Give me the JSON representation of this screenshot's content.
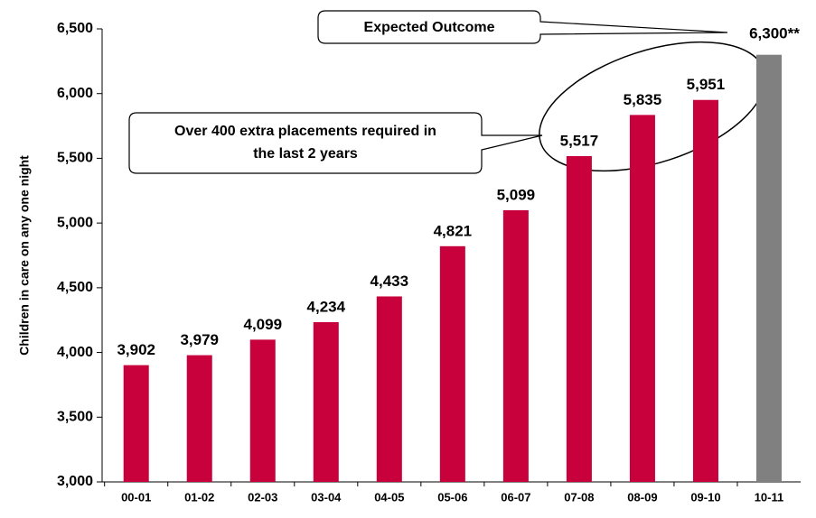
{
  "chart_data": {
    "type": "bar",
    "y_label": "Children in care on any one night",
    "categories": [
      "00-01",
      "01-02",
      "02-03",
      "03-04",
      "04-05",
      "05-06",
      "06-07",
      "07-08",
      "08-09",
      "09-10",
      "10-11"
    ],
    "values": [
      3902,
      3979,
      4099,
      4234,
      4433,
      4821,
      5099,
      5517,
      5835,
      5951,
      6300
    ],
    "value_labels": [
      "3,902",
      "3,979",
      "4,099",
      "4,234",
      "4,433",
      "4,821",
      "5,099",
      "5,517",
      "5,835",
      "5,951",
      "6,300**"
    ],
    "colors": [
      "#c8003c",
      "#c8003c",
      "#c8003c",
      "#c8003c",
      "#c8003c",
      "#c8003c",
      "#c8003c",
      "#c8003c",
      "#c8003c",
      "#c8003c",
      "#808080"
    ],
    "ylim": [
      3000,
      6500
    ],
    "yticks": [
      {
        "value": 3000,
        "label": "3,000"
      },
      {
        "value": 3500,
        "label": "3,500"
      },
      {
        "value": 4000,
        "label": "4,000"
      },
      {
        "value": 4500,
        "label": "4,500"
      },
      {
        "value": 5000,
        "label": "5,000"
      },
      {
        "value": 5500,
        "label": "5,500"
      },
      {
        "value": 6000,
        "label": "6,000"
      },
      {
        "value": 6500,
        "label": "6,500"
      }
    ],
    "annotations": [
      {
        "lines": [
          "Expected Outcome"
        ]
      },
      {
        "lines": [
          "Over 400 extra placements required in",
          "the last 2 years"
        ]
      }
    ]
  }
}
